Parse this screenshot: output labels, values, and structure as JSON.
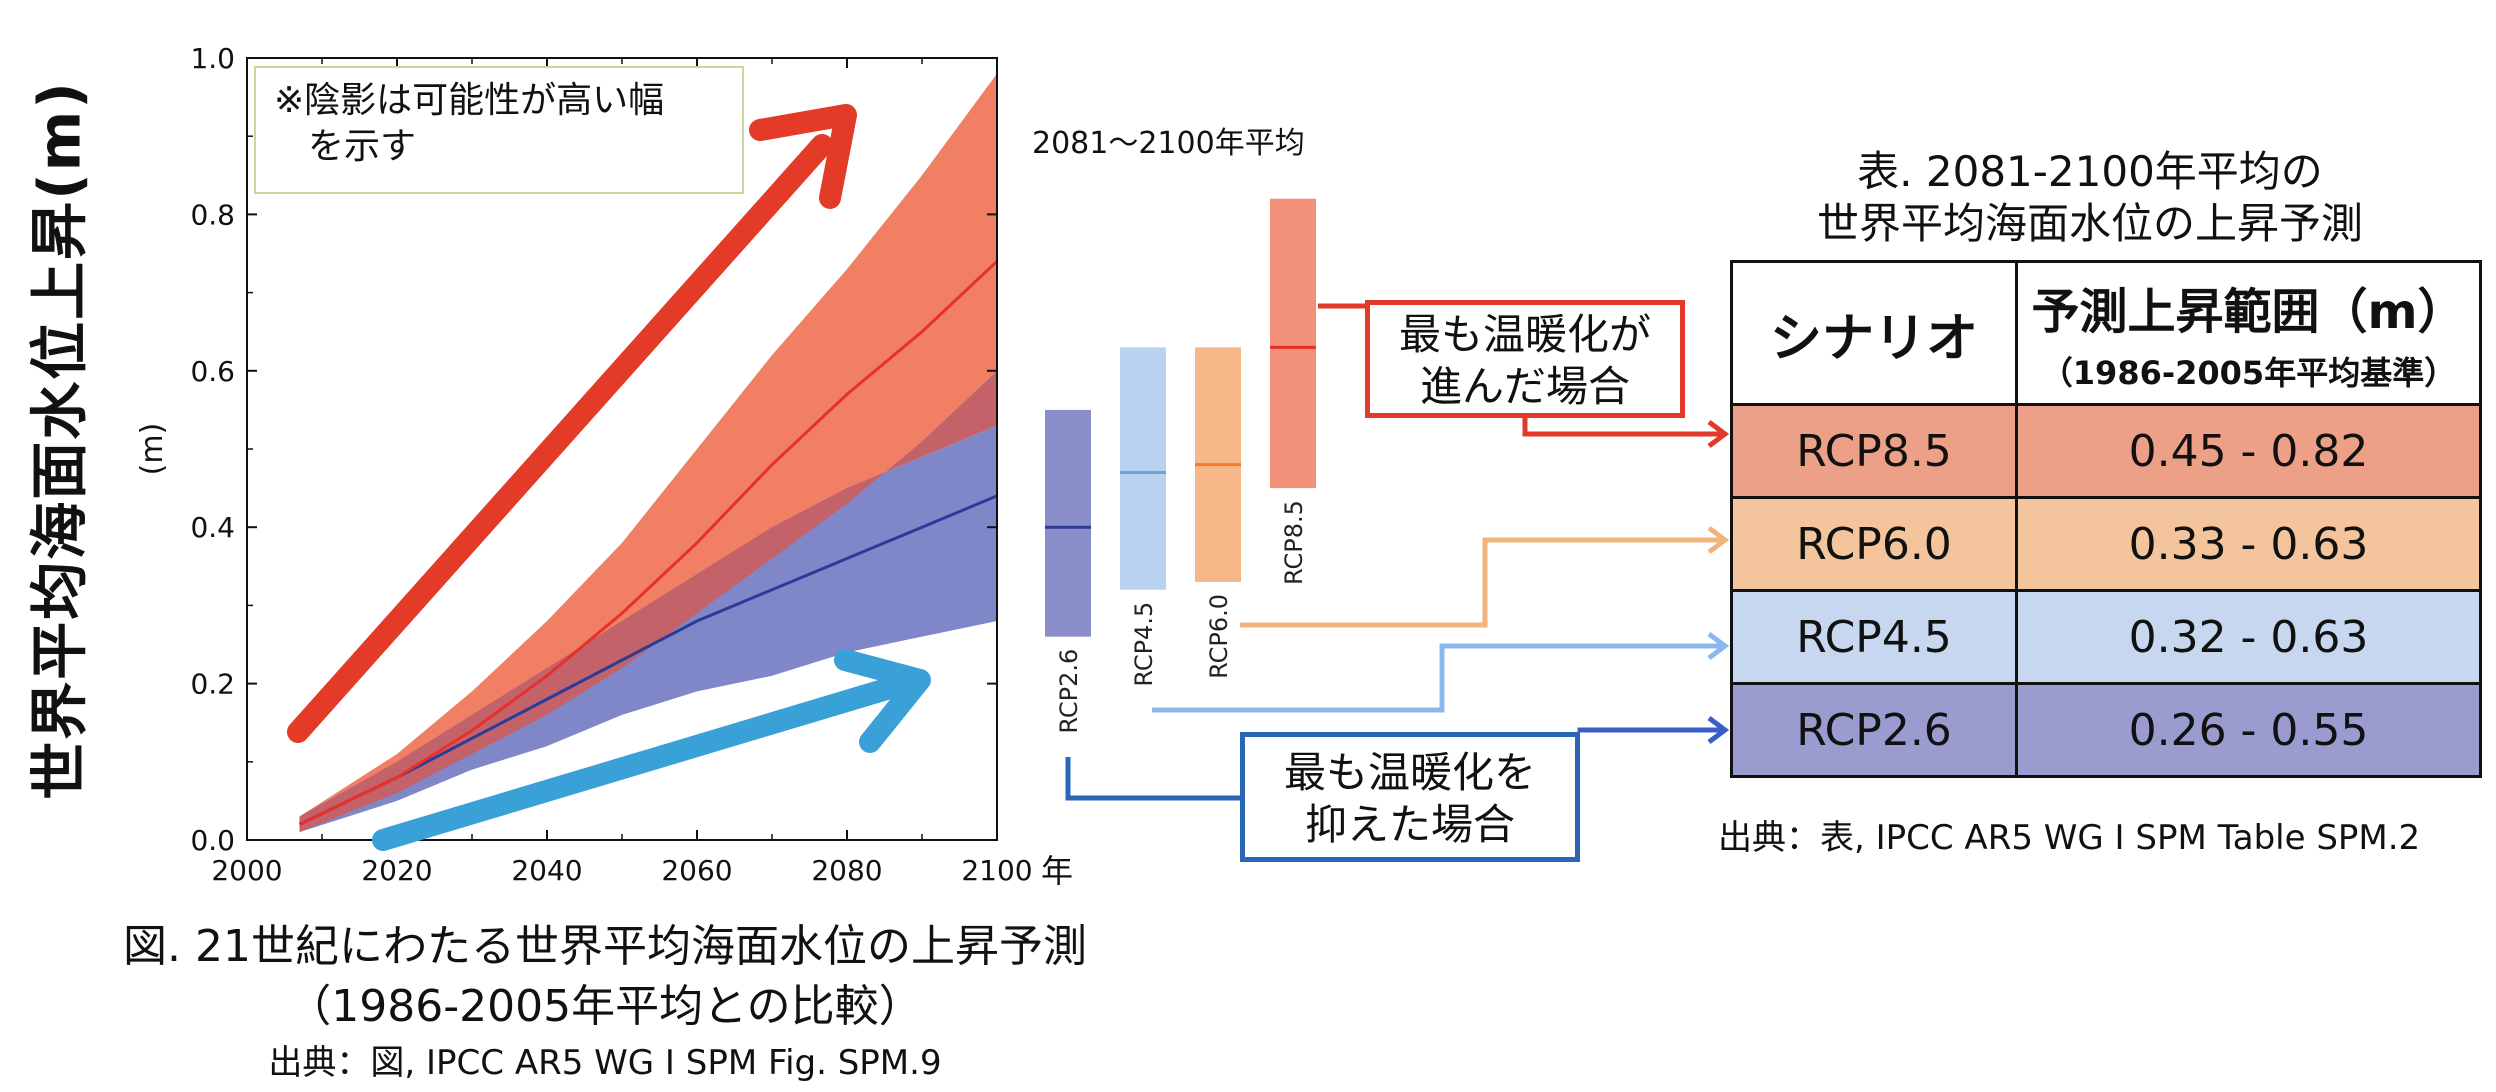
{
  "y_axis_main_label": "世界平均海面水位上昇(m)",
  "note": {
    "line1": "※陰影は可能性が高い幅",
    "line2": "を示す"
  },
  "period_label": "2081～2100年平均",
  "callouts": {
    "highest": {
      "line1": "最も温暖化が",
      "line2": "進んだ場合"
    },
    "lowest": {
      "line1": "最も温暖化を",
      "line2": "抑えた場合"
    }
  },
  "figure_caption": {
    "line1": "図. 21世紀にわたる世界平均海面水位の上昇予測",
    "line2": "（1986-2005年平均との比較）",
    "source": "出典：図, IPCC AR5 WG Ⅰ SPM Fig. SPM.9"
  },
  "table": {
    "title_line1": "表. 2081-2100年平均の",
    "title_line2": "世界平均海面水位の上昇予測",
    "header_scenario": "シナリオ",
    "header_range": "予測上昇範囲（m）",
    "header_range_sub": "（1986-2005年平均基準）",
    "rows": [
      {
        "scenario": "RCP8.5",
        "range": "0.45 - 0.82"
      },
      {
        "scenario": "RCP6.0",
        "range": "0.33 - 0.63"
      },
      {
        "scenario": "RCP4.5",
        "range": "0.32 - 0.63"
      },
      {
        "scenario": "RCP2.6",
        "range": "0.26 - 0.55"
      }
    ],
    "source": "出典：表, IPCC AR5 WG Ⅰ SPM Table SPM.2"
  },
  "colors": {
    "rcp85_band": "#f07f63",
    "rcp26_band": "#8087c8",
    "overlap_band": "#c4626a",
    "rcp85_line": "#e8302a",
    "rcp26_line": "#2c3a9a",
    "arrow_red": "#e43a28",
    "arrow_blue": "#3aa0d8",
    "row_rcp85": "#eda088",
    "row_rcp60": "#f4c59c",
    "row_rcp45": "#c6d7ef",
    "row_rcp26": "#9a9ccf"
  },
  "chart_data": [
    {
      "type": "area",
      "ylabel": "(m)",
      "xlabel": "",
      "x_unit_label": "年",
      "xlim": [
        2000,
        2100
      ],
      "ylim": [
        0.0,
        1.0
      ],
      "x_ticks": [
        2000,
        2020,
        2040,
        2060,
        2080,
        2100
      ],
      "y_ticks": [
        0.0,
        0.2,
        0.4,
        0.6,
        0.8,
        1.0
      ],
      "y_tick_labels": [
        "0.0",
        "0.2",
        "0.4",
        "0.6",
        "0.8",
        "1.0"
      ],
      "grid": false,
      "x": [
        2007,
        2020,
        2030,
        2040,
        2050,
        2060,
        2070,
        2080,
        2090,
        2100
      ],
      "series": [
        {
          "name": "RCP8.5",
          "mean": [
            0.02,
            0.08,
            0.14,
            0.21,
            0.29,
            0.38,
            0.48,
            0.57,
            0.65,
            0.74
          ],
          "lower": [
            0.01,
            0.06,
            0.11,
            0.16,
            0.22,
            0.29,
            0.36,
            0.43,
            0.51,
            0.6
          ],
          "upper": [
            0.03,
            0.11,
            0.19,
            0.28,
            0.38,
            0.5,
            0.62,
            0.73,
            0.85,
            0.98
          ]
        },
        {
          "name": "RCP2.6",
          "mean": [
            0.02,
            0.08,
            0.13,
            0.18,
            0.23,
            0.28,
            0.32,
            0.36,
            0.4,
            0.44
          ],
          "lower": [
            0.01,
            0.05,
            0.09,
            0.12,
            0.16,
            0.19,
            0.21,
            0.24,
            0.26,
            0.28
          ],
          "upper": [
            0.03,
            0.1,
            0.16,
            0.22,
            0.28,
            0.34,
            0.4,
            0.45,
            0.49,
            0.53
          ]
        }
      ]
    },
    {
      "type": "bar",
      "title": "2081～2100年平均",
      "ylim": [
        0.0,
        1.0
      ],
      "bars": [
        {
          "name": "RCP2.6",
          "low": 0.26,
          "high": 0.55,
          "median": 0.4,
          "color": "#8a8ecb",
          "median_color": "#2c3a9a"
        },
        {
          "name": "RCP4.5",
          "low": 0.32,
          "high": 0.63,
          "median": 0.47,
          "color": "#b8d2ef",
          "median_color": "#6aa6dc"
        },
        {
          "name": "RCP6.0",
          "low": 0.33,
          "high": 0.63,
          "median": 0.48,
          "color": "#f6b889",
          "median_color": "#f07a2a"
        },
        {
          "name": "RCP8.5",
          "low": 0.45,
          "high": 0.82,
          "median": 0.63,
          "color": "#f2907a",
          "median_color": "#e8302a"
        }
      ]
    }
  ]
}
